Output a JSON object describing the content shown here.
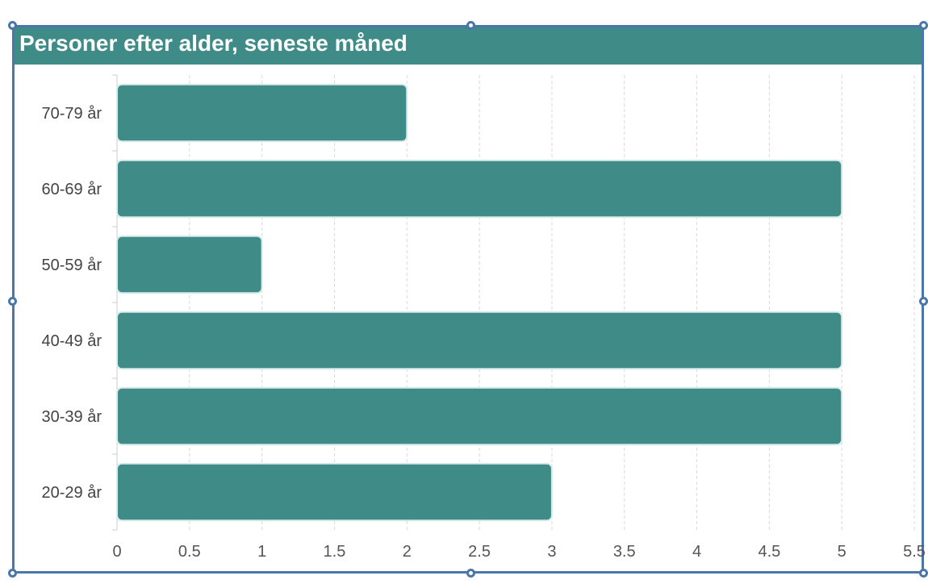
{
  "chart_data": {
    "type": "bar",
    "orientation": "horizontal",
    "title": "Personer efter alder, seneste måned",
    "categories": [
      "70-79 år",
      "60-69 år",
      "50-59 år",
      "40-49 år",
      "30-39 år",
      "20-29 år"
    ],
    "values": [
      2,
      5,
      1,
      5,
      5,
      3
    ],
    "xlim": [
      0,
      5.5
    ],
    "xticks": [
      "0",
      "0.5",
      "1",
      "1.5",
      "2",
      "2.5",
      "3",
      "3.5",
      "4",
      "4.5",
      "5",
      "5.5"
    ],
    "xlabel": "",
    "ylabel": "",
    "grid": "vertical dashed",
    "bar_color": "#3f8b87",
    "title_bg_color": "#3f8b87",
    "selection_border_color": "#4a76a8"
  }
}
